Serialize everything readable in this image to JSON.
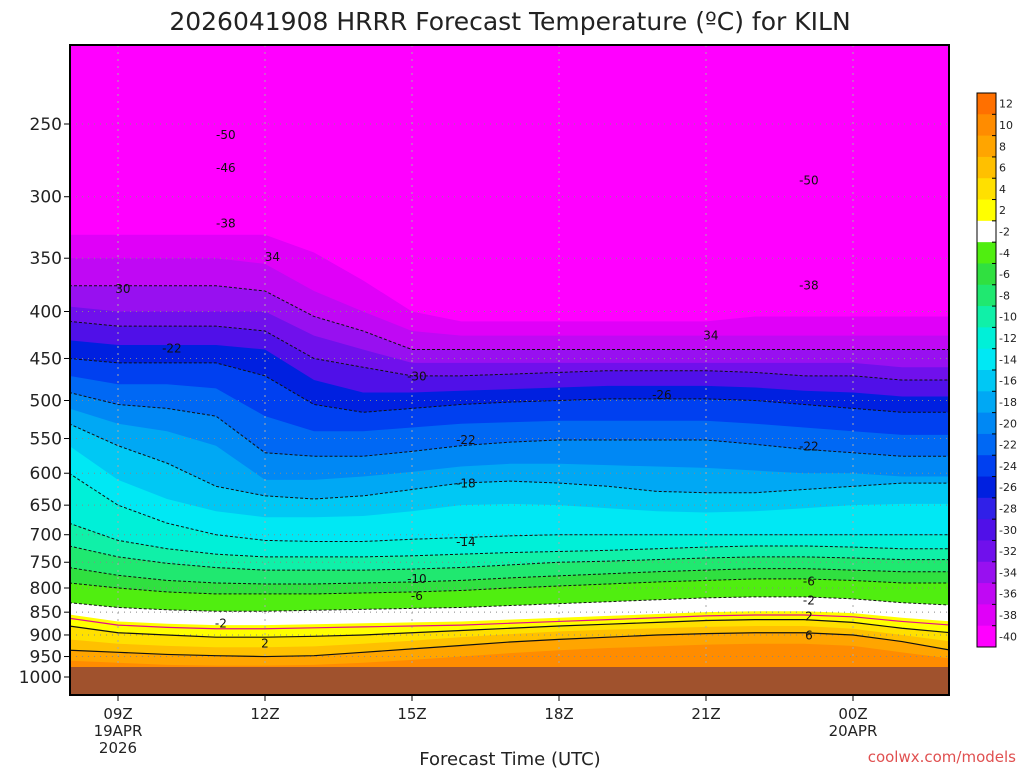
{
  "chart_data": {
    "type": "heatmap",
    "title": "2026041908 HRRR Forecast Temperature (ºC) for KILN",
    "xlabel": "Forecast Time (UTC)",
    "ylabel": "",
    "y_scale": "pressure (log)",
    "y_range_hpa": [
      200,
      1050
    ],
    "y_ticks": [
      250,
      300,
      350,
      400,
      450,
      500,
      550,
      600,
      650,
      700,
      750,
      800,
      850,
      900,
      950,
      1000
    ],
    "x_ticks": [
      {
        "label": "09Z",
        "sub": [
          "19APR",
          "2026"
        ],
        "hour": 9
      },
      {
        "label": "12Z",
        "sub": [],
        "hour": 12
      },
      {
        "label": "15Z",
        "sub": [],
        "hour": 15
      },
      {
        "label": "18Z",
        "sub": [],
        "hour": 18
      },
      {
        "label": "21Z",
        "sub": [],
        "hour": 21
      },
      {
        "label": "00Z",
        "sub": [
          "20APR"
        ],
        "hour": 24
      }
    ],
    "x_range_hours": [
      8.0,
      26.0
    ],
    "ground_level_hpa": 985,
    "colorbar": {
      "levels": [
        12,
        10,
        8,
        6,
        4,
        2,
        -2,
        -4,
        -6,
        -8,
        -10,
        -12,
        -14,
        -16,
        -18,
        -20,
        -22,
        -24,
        -26,
        -28,
        -30,
        -32,
        -34,
        -36,
        -38,
        -40
      ],
      "colors": [
        "#ff7000",
        "#ff8c00",
        "#ffa500",
        "#ffc000",
        "#ffe000",
        "#ffff00",
        "#ffffff",
        "#50ee10",
        "#30e040",
        "#20e870",
        "#10f0a8",
        "#00f0d8",
        "#00e8f4",
        "#00c8f4",
        "#00a8f4",
        "#0088f4",
        "#0068f4",
        "#0040f0",
        "#0020e0",
        "#3020e8",
        "#5010e8",
        "#7010ec",
        "#9810f0",
        "#c008f4",
        "#e000f8",
        "#ff00ff"
      ]
    },
    "contour_labels": [
      {
        "text": "-50",
        "hour": 11.2,
        "p": 257
      },
      {
        "text": "-46",
        "hour": 11.2,
        "p": 279
      },
      {
        "text": "-38",
        "hour": 11.2,
        "p": 321
      },
      {
        "text": "34",
        "hour": 12.15,
        "p": 349
      },
      {
        "text": "30",
        "hour": 9.1,
        "p": 378
      },
      {
        "text": "-22",
        "hour": 10.1,
        "p": 439
      },
      {
        "text": "-30",
        "hour": 15.1,
        "p": 471
      },
      {
        "text": "-26",
        "hour": 20.1,
        "p": 493
      },
      {
        "text": "-22",
        "hour": 16.1,
        "p": 552
      },
      {
        "text": "-22",
        "hour": 23.1,
        "p": 561
      },
      {
        "text": "-18",
        "hour": 16.1,
        "p": 616
      },
      {
        "text": "-14",
        "hour": 16.1,
        "p": 713
      },
      {
        "text": "-10",
        "hour": 15.1,
        "p": 782
      },
      {
        "text": "-6",
        "hour": 15.1,
        "p": 816
      },
      {
        "text": "-6",
        "hour": 23.1,
        "p": 787
      },
      {
        "text": "-2",
        "hour": 23.1,
        "p": 825
      },
      {
        "text": "-50",
        "hour": 23.1,
        "p": 288
      },
      {
        "text": "-38",
        "hour": 23.1,
        "p": 375
      },
      {
        "text": "34",
        "hour": 21.1,
        "p": 425
      },
      {
        "text": "-2",
        "hour": 11.1,
        "p": 874
      },
      {
        "text": "2",
        "hour": 12.0,
        "p": 919
      },
      {
        "text": "2",
        "hour": 23.1,
        "p": 859
      },
      {
        "text": "6",
        "hour": 23.1,
        "p": 901
      }
    ]
  },
  "credit": "coolwx.com/models"
}
